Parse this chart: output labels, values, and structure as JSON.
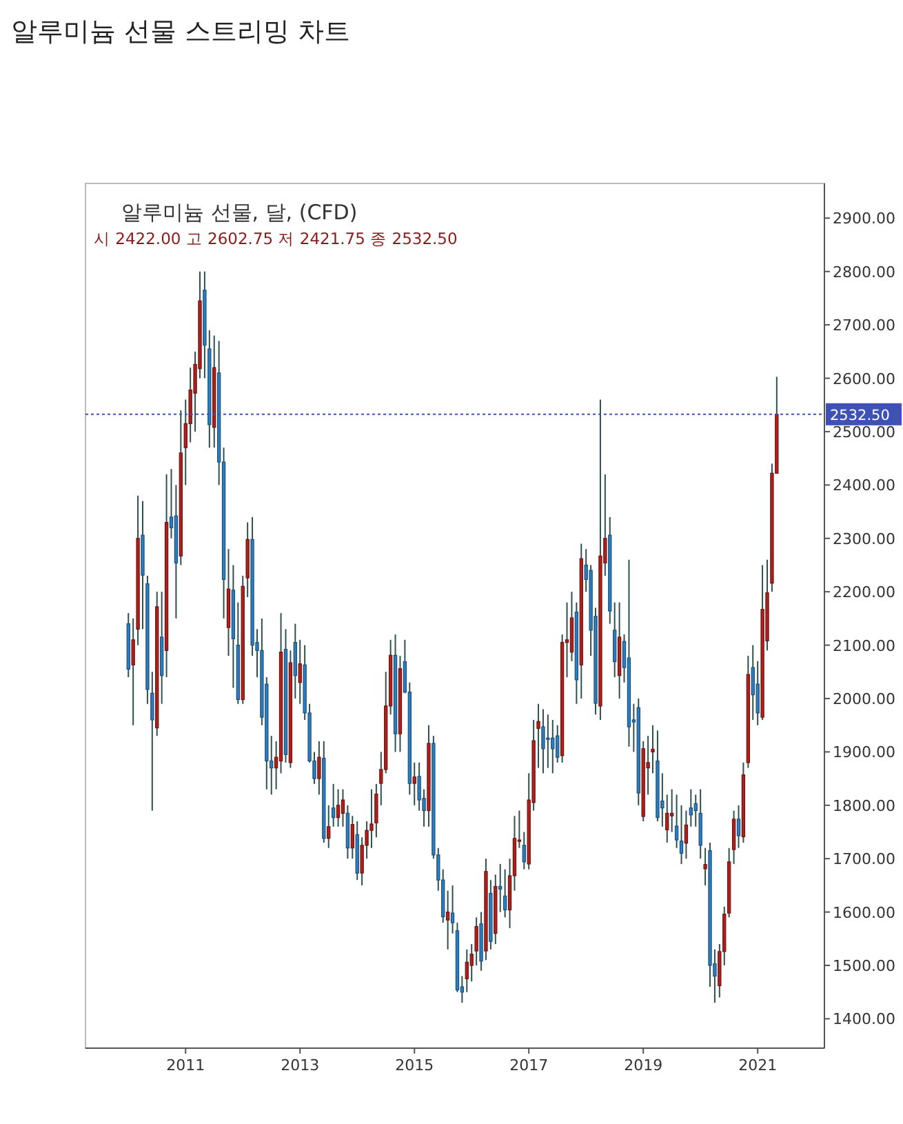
{
  "chart_data": {
    "type": "candlestick",
    "title": "알루미늄 선물 스트리밍 차트",
    "subtitle": "알루미늄 선물, 달, (CFD)",
    "annotations": [
      "시 2422.00 고 2602.75 저 2421.75 종 2532.50"
    ],
    "x": [
      "2010-01",
      "2010-02",
      "2010-03",
      "2010-04",
      "2010-05",
      "2010-06",
      "2010-07",
      "2010-08",
      "2010-09",
      "2010-10",
      "2010-11",
      "2010-12",
      "2011-01",
      "2011-02",
      "2011-03",
      "2011-04",
      "2011-05",
      "2011-06",
      "2011-07",
      "2011-08",
      "2011-09",
      "2011-10",
      "2011-11",
      "2011-12",
      "2012-01",
      "2012-02",
      "2012-03",
      "2012-04",
      "2012-05",
      "2012-06",
      "2012-07",
      "2012-08",
      "2012-09",
      "2012-10",
      "2012-11",
      "2012-12",
      "2013-01",
      "2013-02",
      "2013-03",
      "2013-04",
      "2013-05",
      "2013-06",
      "2013-07",
      "2013-08",
      "2013-09",
      "2013-10",
      "2013-11",
      "2013-12",
      "2014-01",
      "2014-02",
      "2014-03",
      "2014-04",
      "2014-05",
      "2014-06",
      "2014-07",
      "2014-08",
      "2014-09",
      "2014-10",
      "2014-11",
      "2014-12",
      "2015-01",
      "2015-02",
      "2015-03",
      "2015-04",
      "2015-05",
      "2015-06",
      "2015-07",
      "2015-08",
      "2015-09",
      "2015-10",
      "2015-11",
      "2015-12",
      "2016-01",
      "2016-02",
      "2016-03",
      "2016-04",
      "2016-05",
      "2016-06",
      "2016-07",
      "2016-08",
      "2016-09",
      "2016-10",
      "2016-11",
      "2016-12",
      "2017-01",
      "2017-02",
      "2017-03",
      "2017-04",
      "2017-05",
      "2017-06",
      "2017-07",
      "2017-08",
      "2017-09",
      "2017-10",
      "2017-11",
      "2017-12",
      "2018-01",
      "2018-02",
      "2018-03",
      "2018-04",
      "2018-05",
      "2018-06",
      "2018-07",
      "2018-08",
      "2018-09",
      "2018-10",
      "2018-11",
      "2018-12",
      "2019-01",
      "2019-02",
      "2019-03",
      "2019-04",
      "2019-05",
      "2019-06",
      "2019-07",
      "2019-08",
      "2019-09",
      "2019-10",
      "2019-11",
      "2019-12",
      "2020-01",
      "2020-02",
      "2020-03",
      "2020-04",
      "2020-05",
      "2020-06",
      "2020-07",
      "2020-08",
      "2020-09",
      "2020-10",
      "2020-11",
      "2020-12",
      "2021-01",
      "2021-02",
      "2021-03",
      "2021-04",
      "2021-05"
    ],
    "ohlc": [
      [
        2140,
        2160,
        2040,
        2055
      ],
      [
        2063,
        2150,
        1950,
        2110
      ],
      [
        2130,
        2380,
        2100,
        2300
      ],
      [
        2306,
        2370,
        2130,
        2231
      ],
      [
        2215,
        2230,
        1990,
        2017
      ],
      [
        2010,
        2050,
        1790,
        1960
      ],
      [
        1945,
        2200,
        1930,
        2172
      ],
      [
        2115,
        2200,
        1990,
        2043
      ],
      [
        2090,
        2420,
        2040,
        2330
      ],
      [
        2340,
        2430,
        2300,
        2320
      ],
      [
        2342,
        2400,
        2150,
        2254
      ],
      [
        2267,
        2540,
        2250,
        2460
      ],
      [
        2470,
        2560,
        2400,
        2515
      ],
      [
        2515,
        2620,
        2480,
        2578
      ],
      [
        2572,
        2650,
        2500,
        2626
      ],
      [
        2618,
        2800,
        2600,
        2745
      ],
      [
        2765,
        2800,
        2600,
        2662
      ],
      [
        2655,
        2690,
        2470,
        2513
      ],
      [
        2508,
        2680,
        2470,
        2620
      ],
      [
        2610,
        2670,
        2400,
        2443
      ],
      [
        2443,
        2470,
        2150,
        2223
      ],
      [
        2133,
        2280,
        2080,
        2205
      ],
      [
        2203,
        2250,
        2020,
        2112
      ],
      [
        2100,
        2180,
        1990,
        1998
      ],
      [
        1998,
        2230,
        1990,
        2210
      ],
      [
        2226,
        2330,
        2190,
        2298
      ],
      [
        2298,
        2340,
        2080,
        2100
      ],
      [
        2105,
        2130,
        2040,
        2090
      ],
      [
        2090,
        2150,
        1950,
        1965
      ],
      [
        2027,
        2040,
        1830,
        1883
      ],
      [
        1883,
        1930,
        1820,
        1870
      ],
      [
        1870,
        1920,
        1830,
        1890
      ],
      [
        1883,
        2160,
        1860,
        2087
      ],
      [
        2092,
        2130,
        1880,
        1895
      ],
      [
        1880,
        2090,
        1870,
        2067
      ],
      [
        2105,
        2140,
        2000,
        2043
      ],
      [
        2030,
        2110,
        1990,
        2065
      ],
      [
        2063,
        2100,
        1960,
        1973
      ],
      [
        1973,
        1990,
        1880,
        1883
      ],
      [
        1883,
        1900,
        1840,
        1850
      ],
      [
        1850,
        1920,
        1820,
        1890
      ],
      [
        1888,
        1920,
        1730,
        1738
      ],
      [
        1738,
        1800,
        1720,
        1760
      ],
      [
        1795,
        1840,
        1760,
        1777
      ],
      [
        1777,
        1830,
        1760,
        1800
      ],
      [
        1785,
        1830,
        1760,
        1810
      ],
      [
        1785,
        1800,
        1700,
        1720
      ],
      [
        1720,
        1780,
        1700,
        1764
      ],
      [
        1745,
        1770,
        1660,
        1673
      ],
      [
        1673,
        1740,
        1650,
        1725
      ],
      [
        1725,
        1770,
        1700,
        1753
      ],
      [
        1753,
        1830,
        1720,
        1765
      ],
      [
        1767,
        1840,
        1740,
        1821
      ],
      [
        1841,
        1900,
        1800,
        1867
      ],
      [
        1867,
        2050,
        1860,
        1986
      ],
      [
        1986,
        2110,
        1970,
        2081
      ],
      [
        2081,
        2120,
        1900,
        1934
      ],
      [
        1934,
        2080,
        1900,
        2056
      ],
      [
        2069,
        2110,
        2010,
        2012
      ],
      [
        2012,
        2030,
        1820,
        1841
      ],
      [
        1841,
        1880,
        1800,
        1853
      ],
      [
        1854,
        1880,
        1790,
        1810
      ],
      [
        1813,
        1830,
        1760,
        1790
      ],
      [
        1790,
        1950,
        1760,
        1916
      ],
      [
        1916,
        1930,
        1700,
        1707
      ],
      [
        1707,
        1720,
        1640,
        1660
      ],
      [
        1660,
        1680,
        1580,
        1591
      ],
      [
        1585,
        1640,
        1530,
        1600
      ],
      [
        1598,
        1650,
        1560,
        1580
      ],
      [
        1565,
        1580,
        1450,
        1454
      ],
      [
        1460,
        1480,
        1430,
        1450
      ],
      [
        1475,
        1530,
        1450,
        1506
      ],
      [
        1500,
        1540,
        1470,
        1521
      ],
      [
        1527,
        1590,
        1500,
        1573
      ],
      [
        1578,
        1600,
        1490,
        1508
      ],
      [
        1527,
        1700,
        1510,
        1676
      ],
      [
        1635,
        1660,
        1530,
        1545
      ],
      [
        1560,
        1670,
        1540,
        1648
      ],
      [
        1648,
        1690,
        1600,
        1643
      ],
      [
        1630,
        1680,
        1590,
        1604
      ],
      [
        1604,
        1700,
        1570,
        1668
      ],
      [
        1668,
        1780,
        1640,
        1738
      ],
      [
        1733,
        1790,
        1720,
        1735
      ],
      [
        1725,
        1750,
        1680,
        1694
      ],
      [
        1690,
        1860,
        1680,
        1810
      ],
      [
        1805,
        1960,
        1790,
        1921
      ],
      [
        1944,
        1990,
        1870,
        1957
      ],
      [
        1947,
        1980,
        1860,
        1906
      ],
      [
        1926,
        1970,
        1870,
        1924
      ],
      [
        1926,
        1960,
        1860,
        1906
      ],
      [
        1930,
        1950,
        1880,
        1890
      ],
      [
        1893,
        2120,
        1880,
        2105
      ],
      [
        2105,
        2180,
        2040,
        2110
      ],
      [
        2087,
        2200,
        2070,
        2151
      ],
      [
        2162,
        2180,
        1990,
        2035
      ],
      [
        2063,
        2290,
        2000,
        2262
      ],
      [
        2250,
        2280,
        2200,
        2223
      ],
      [
        2240,
        2250,
        2080,
        2128
      ],
      [
        2154,
        2170,
        1970,
        1991
      ],
      [
        1986,
        2560,
        1960,
        2267
      ],
      [
        2254,
        2420,
        2230,
        2300
      ],
      [
        2306,
        2340,
        2140,
        2164
      ],
      [
        2128,
        2180,
        2040,
        2069
      ],
      [
        2043,
        2180,
        2000,
        2115
      ],
      [
        2107,
        2120,
        2030,
        2058
      ],
      [
        2076,
        2260,
        1910,
        1947
      ],
      [
        1960,
        1990,
        1900,
        1956
      ],
      [
        1983,
        2000,
        1800,
        1823
      ],
      [
        1779,
        1920,
        1770,
        1906
      ],
      [
        1870,
        1930,
        1820,
        1880
      ],
      [
        1900,
        1950,
        1860,
        1905
      ],
      [
        1883,
        1940,
        1770,
        1777
      ],
      [
        1808,
        1860,
        1760,
        1795
      ],
      [
        1754,
        1820,
        1730,
        1785
      ],
      [
        1780,
        1830,
        1750,
        1785
      ],
      [
        1761,
        1820,
        1720,
        1735
      ],
      [
        1733,
        1800,
        1690,
        1710
      ],
      [
        1729,
        1790,
        1700,
        1763
      ],
      [
        1795,
        1830,
        1760,
        1782
      ],
      [
        1803,
        1820,
        1760,
        1790
      ],
      [
        1785,
        1830,
        1700,
        1725
      ],
      [
        1681,
        1720,
        1650,
        1689
      ],
      [
        1715,
        1730,
        1460,
        1500
      ],
      [
        1503,
        1530,
        1430,
        1480
      ],
      [
        1462,
        1540,
        1440,
        1526
      ],
      [
        1526,
        1610,
        1500,
        1596
      ],
      [
        1598,
        1720,
        1590,
        1694
      ],
      [
        1717,
        1790,
        1690,
        1774
      ],
      [
        1774,
        1800,
        1720,
        1743
      ],
      [
        1741,
        1880,
        1730,
        1857
      ],
      [
        1880,
        2080,
        1870,
        2045
      ],
      [
        2058,
        2100,
        1960,
        2007
      ],
      [
        2027,
        2070,
        1950,
        1973
      ],
      [
        1965,
        2250,
        1960,
        2167
      ],
      [
        2108,
        2260,
        2090,
        2198
      ],
      [
        2216,
        2440,
        2200,
        2422
      ],
      [
        2422.0,
        2602.75,
        2421.75,
        2532.5
      ]
    ],
    "xlim": [
      "2009-04",
      "2022-03"
    ],
    "xticks": [
      "2011",
      "2013",
      "2015",
      "2017",
      "2019",
      "2021"
    ],
    "ylim": [
      1345,
      2965
    ],
    "yticks": [
      {
        "value": 1400,
        "label": "1400.00"
      },
      {
        "value": 1500,
        "label": "1500.00"
      },
      {
        "value": 1600,
        "label": "1600.00"
      },
      {
        "value": 1700,
        "label": "1700.00"
      },
      {
        "value": 1800,
        "label": "1800.00"
      },
      {
        "value": 1900,
        "label": "1900.00"
      },
      {
        "value": 2000,
        "label": "2000.00"
      },
      {
        "value": 2100,
        "label": "2100.00"
      },
      {
        "value": 2200,
        "label": "2200.00"
      },
      {
        "value": 2300,
        "label": "2300.00"
      },
      {
        "value": 2400,
        "label": "2400.00"
      },
      {
        "value": 2500,
        "label": "2500.00"
      },
      {
        "value": 2600,
        "label": "2600.00"
      },
      {
        "value": 2700,
        "label": "2700.00"
      },
      {
        "value": 2800,
        "label": "2800.00"
      },
      {
        "value": 2900,
        "label": "2900.00"
      }
    ],
    "ref_lines": [
      {
        "axis": "y",
        "value": 2532.5,
        "label": "2532.50",
        "color": "#3f51b5",
        "line_style": "dotted"
      }
    ],
    "grid": false
  }
}
